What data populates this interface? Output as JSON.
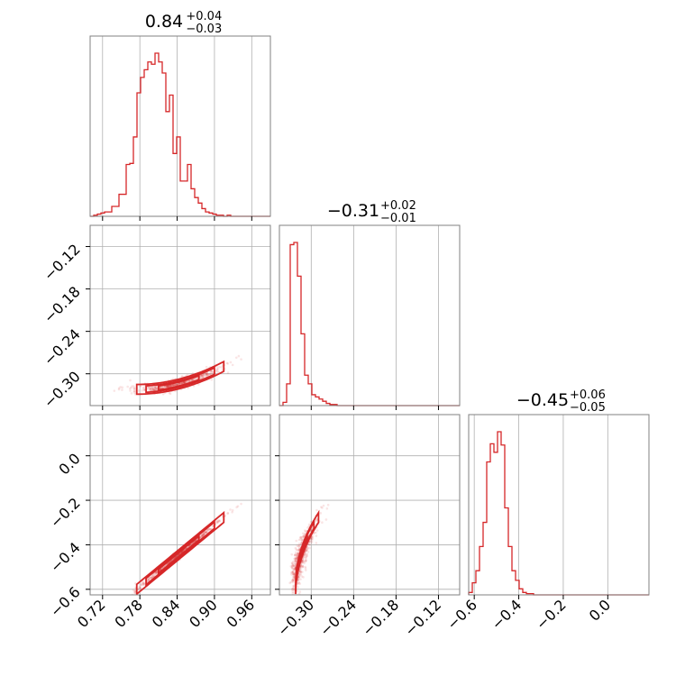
{
  "chart_data": {
    "type": "corner",
    "color": "#d62728",
    "gridColor": "#b0b0b0",
    "grid": true,
    "parameters": [
      {
        "median": 0.84,
        "plus": 0.04,
        "minus": 0.03,
        "median_text": "0.84",
        "plus_text": "+0.04",
        "minus_text": "−0.03"
      },
      {
        "median": -0.31,
        "plus": 0.02,
        "minus": 0.01,
        "median_text": "−0.31",
        "plus_text": "+0.02",
        "minus_text": "−0.01"
      },
      {
        "median": -0.45,
        "plus": 0.06,
        "minus": 0.05,
        "median_text": "−0.45",
        "plus_text": "+0.06",
        "minus_text": "−0.05"
      }
    ],
    "ranges": [
      [
        0.7,
        0.99
      ],
      [
        -0.345,
        -0.09
      ],
      [
        -0.625,
        0.185
      ]
    ],
    "ticks": [
      {
        "values": [
          0.72,
          0.78,
          0.84,
          0.9,
          0.96
        ],
        "labels": [
          "0.72",
          "0.78",
          "0.84",
          "0.90",
          "0.96"
        ]
      },
      {
        "values": [
          -0.3,
          -0.24,
          -0.18,
          -0.12
        ],
        "labels": [
          "−0.30",
          "−0.24",
          "−0.18",
          "−0.12"
        ]
      },
      {
        "values": [
          -0.6,
          -0.4,
          -0.2,
          0.0
        ],
        "labels": [
          "−0.6",
          "−0.4",
          "−0.2",
          "0.0"
        ]
      }
    ],
    "histograms": [
      {
        "bin_start": 0.7,
        "bin_width": 0.0058,
        "counts": [
          0,
          1,
          2,
          3,
          4,
          4,
          9,
          9,
          20,
          20,
          47,
          48,
          72,
          112,
          126,
          133,
          140,
          138,
          148,
          140,
          130,
          95,
          110,
          57,
          72,
          32,
          32,
          47,
          25,
          17,
          12,
          7,
          4,
          3,
          2,
          1,
          1,
          0,
          1,
          0
        ]
      },
      {
        "bin_start": -0.345,
        "bin_width": 0.0051,
        "counts": [
          0,
          3,
          20,
          148,
          150,
          119,
          66,
          28,
          20,
          10,
          8,
          6,
          4,
          2,
          1,
          1,
          0,
          0,
          0,
          0,
          0,
          0,
          0,
          0,
          0,
          0,
          0,
          0,
          0,
          0,
          0,
          0,
          0,
          0,
          0,
          0,
          0,
          0,
          0,
          0,
          0,
          0,
          0,
          0,
          0,
          0,
          0,
          0,
          0,
          0
        ]
      },
      {
        "bin_start": -0.625,
        "bin_width": 0.0162,
        "counts": [
          2,
          10,
          20,
          40,
          60,
          110,
          125,
          118,
          135,
          124,
          72,
          40,
          20,
          12,
          5,
          2,
          1,
          1,
          0,
          0,
          0,
          0,
          0,
          0,
          0,
          0,
          0,
          0,
          0,
          0,
          0,
          0,
          0,
          0,
          0,
          0,
          0,
          0,
          0,
          0,
          0,
          0,
          0,
          0,
          0,
          0,
          0,
          0,
          0,
          0
        ]
      }
    ]
  }
}
